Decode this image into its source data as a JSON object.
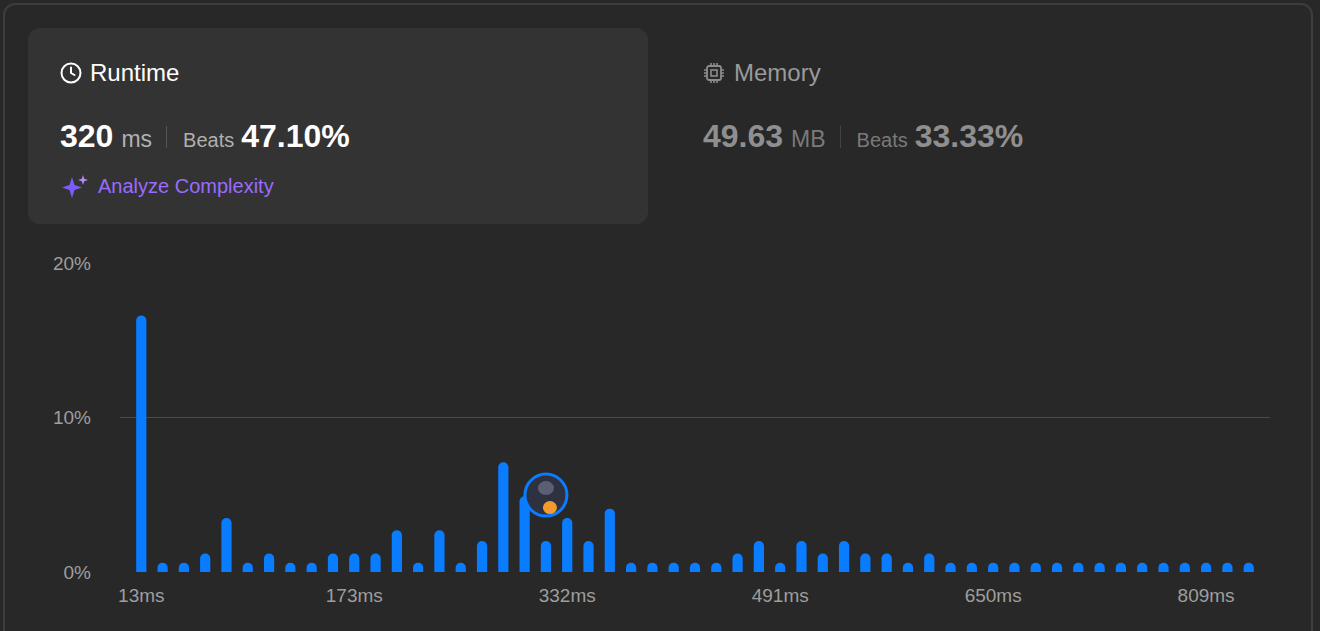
{
  "runtime_card": {
    "title": "Runtime",
    "value": "320",
    "unit": "ms",
    "beats_label": "Beats",
    "beats": "47.10%",
    "link": "Analyze Complexity"
  },
  "memory_card": {
    "title": "Memory",
    "value": "49.63",
    "unit": "MB",
    "beats_label": "Beats",
    "beats": "33.33%"
  },
  "chart_data": {
    "type": "bar",
    "categories": [
      "13ms",
      null,
      null,
      null,
      null,
      null,
      null,
      null,
      null,
      null,
      "173ms",
      null,
      null,
      null,
      null,
      null,
      null,
      null,
      null,
      null,
      "332ms",
      null,
      null,
      null,
      null,
      null,
      null,
      null,
      null,
      null,
      "491ms",
      null,
      null,
      null,
      null,
      null,
      null,
      null,
      null,
      null,
      "650ms",
      null,
      null,
      null,
      null,
      null,
      null,
      null,
      null,
      null,
      "809ms",
      null,
      null
    ],
    "values": [
      16.6,
      0.6,
      0.6,
      1.2,
      3.5,
      0.6,
      1.2,
      0.6,
      0.6,
      1.2,
      1.2,
      1.2,
      2.7,
      0.6,
      2.7,
      0.6,
      2.0,
      7.1,
      4.9,
      2.0,
      3.5,
      2.0,
      4.1,
      0.6,
      0.6,
      0.6,
      0.6,
      0.6,
      1.2,
      2.0,
      0.6,
      2.0,
      1.2,
      2.0,
      1.2,
      1.2,
      0.6,
      1.2,
      0.6,
      0.6,
      0.6,
      0.6,
      0.6,
      0.6,
      0.6,
      0.6,
      0.6,
      0.6,
      0.6,
      0.6,
      0.6,
      0.6,
      0.6
    ],
    "color": "#0a7cff",
    "highlight": 19,
    "ylim": [
      0,
      20
    ],
    "yticks": [
      {
        "value": 0,
        "label": "0%"
      },
      {
        "value": 10,
        "label": "10%"
      },
      {
        "value": 20,
        "label": "20%"
      }
    ],
    "grid": true
  }
}
